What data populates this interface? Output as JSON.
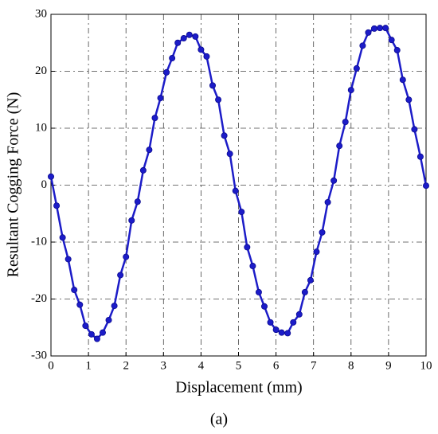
{
  "chart_data": {
    "type": "line",
    "xlabel": "Displacement (mm)",
    "ylabel": "Resultant Cogging Force (N)",
    "caption": "(a)",
    "xlim": [
      0,
      10
    ],
    "xticks": [
      0,
      1,
      2,
      3,
      4,
      5,
      6,
      7,
      8,
      9,
      10
    ],
    "ylim": [
      -30,
      30
    ],
    "yticks": [
      -30,
      -20,
      -10,
      0,
      10,
      20,
      30
    ],
    "grid": true,
    "x": [
      0,
      0.15,
      0.31,
      0.46,
      0.62,
      0.77,
      0.92,
      1.08,
      1.23,
      1.38,
      1.54,
      1.69,
      1.85,
      2,
      2.15,
      2.31,
      2.46,
      2.62,
      2.77,
      2.92,
      3.08,
      3.23,
      3.38,
      3.54,
      3.69,
      3.85,
      4,
      4.15,
      4.31,
      4.46,
      4.62,
      4.77,
      4.92,
      5.08,
      5.23,
      5.38,
      5.54,
      5.69,
      5.85,
      6,
      6.15,
      6.31,
      6.46,
      6.62,
      6.77,
      6.92,
      7.08,
      7.23,
      7.38,
      7.54,
      7.69,
      7.85,
      8,
      8.15,
      8.31,
      8.46,
      8.62,
      8.77,
      8.92,
      9.08,
      9.23,
      9.38,
      9.54,
      9.69,
      9.85,
      10
    ],
    "series": [
      {
        "color": "#1c1cc8",
        "values": [
          1.5,
          -3.6,
          -9.2,
          -13,
          -18.4,
          -21,
          -24.7,
          -26.2,
          -27,
          -25.9,
          -23.7,
          -21.2,
          -15.8,
          -12.6,
          -6.2,
          -2.9,
          2.6,
          6.2,
          11.8,
          15.3,
          19.8,
          22.3,
          25,
          25.8,
          26.4,
          26.1,
          23.8,
          22.6,
          17.5,
          15,
          8.7,
          5.5,
          -1,
          -4.7,
          -10.9,
          -14.2,
          -18.8,
          -21.3,
          -24.1,
          -25.4,
          -25.9,
          -26,
          -24.1,
          -22.7,
          -18.8,
          -16.7,
          -11.7,
          -8.3,
          -3,
          0.8,
          6.9,
          11.1,
          16.7,
          20.5,
          24.5,
          26.8,
          27.5,
          27.6,
          27.6,
          25.5,
          23.7,
          18.5,
          15,
          9.8,
          5,
          -0.1
        ]
      }
    ]
  }
}
